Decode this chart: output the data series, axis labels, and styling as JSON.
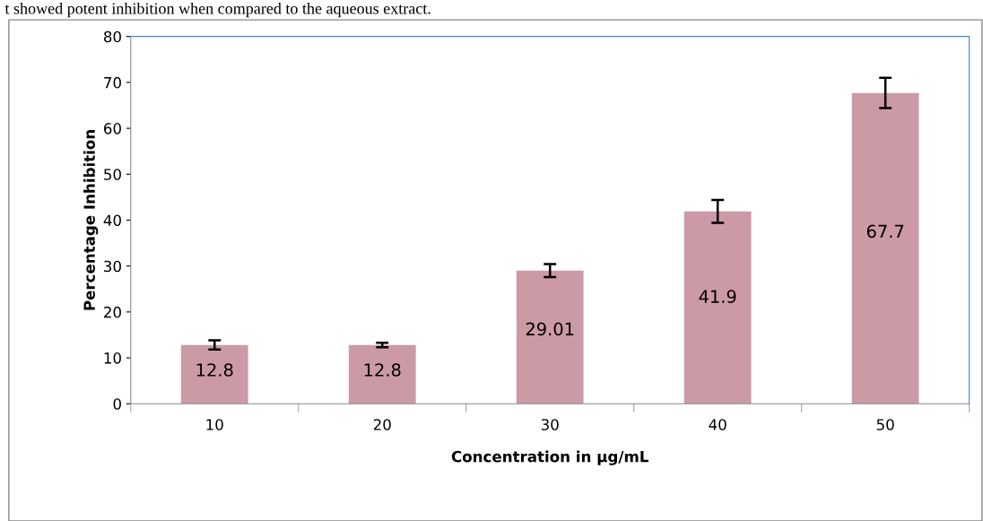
{
  "chart_data": {
    "type": "bar",
    "categories": [
      "10",
      "20",
      "30",
      "40",
      "50"
    ],
    "values": [
      12.8,
      12.8,
      29.01,
      41.9,
      67.7
    ],
    "errors": [
      1.0,
      0.5,
      1.4,
      2.5,
      3.3
    ],
    "color": "#cc9aa6",
    "data_labels": true,
    "xlabel": "Concentration in µg/mL",
    "ylabel": "Percentage Inhibition",
    "ylim": [
      0,
      80
    ],
    "yticks": [
      0,
      10,
      20,
      30,
      40,
      50,
      60,
      70,
      80
    ],
    "grid": false,
    "legend": false,
    "annotations": [
      "t showed potent inhibition when compared to the aqueous extract."
    ]
  }
}
